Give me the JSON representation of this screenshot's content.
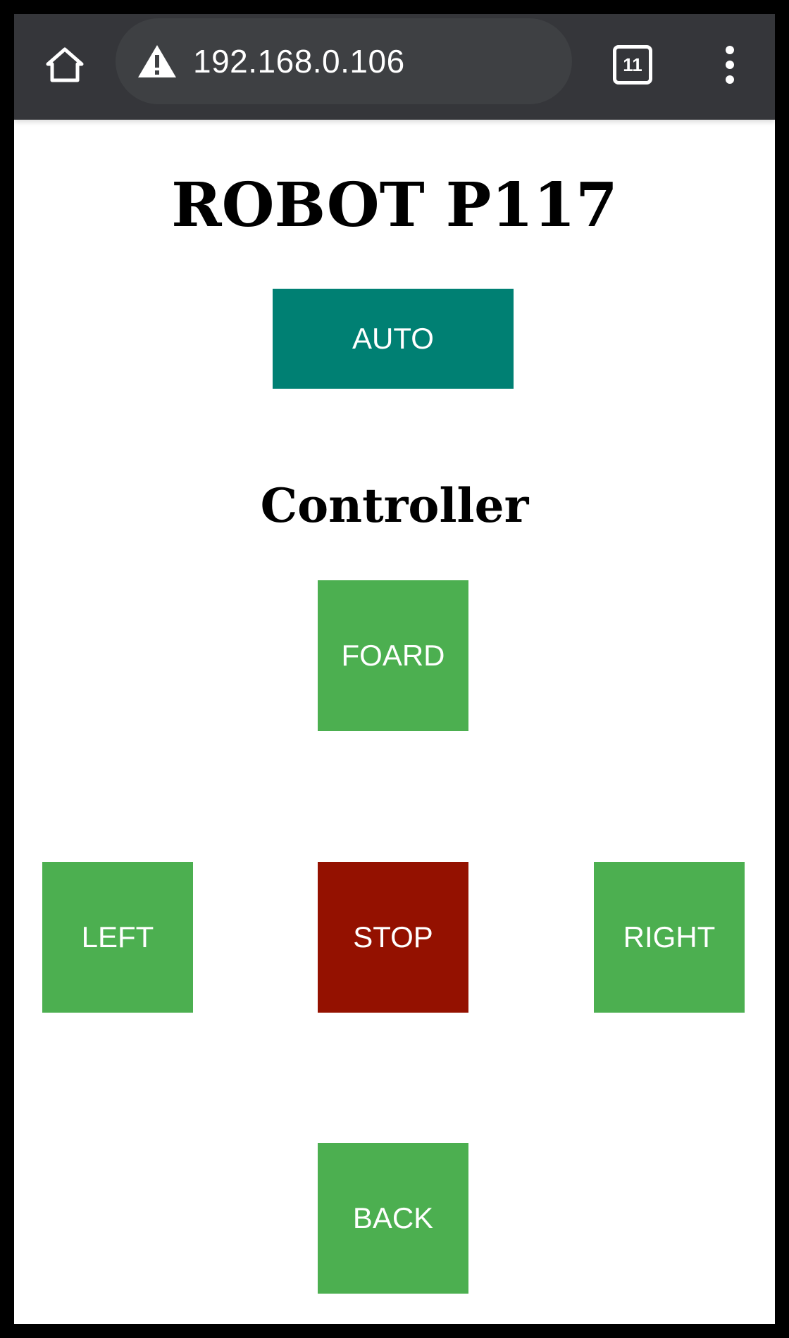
{
  "browser": {
    "url": "192.168.0.106",
    "tab_count": "11",
    "icons": {
      "home": "home-icon",
      "warning": "warning-icon",
      "tabs": "tab-switcher-icon",
      "menu": "more-vert-icon"
    },
    "toolbar_color": "#35363a"
  },
  "page": {
    "title": "ROBOT P117",
    "auto_button": "AUTO",
    "controller_heading": "Controller",
    "controls": {
      "forward": "FOARD",
      "left": "LEFT",
      "stop": "STOP",
      "right": "RIGHT",
      "back": "BACK"
    },
    "colors": {
      "auto": "#008073",
      "direction": "#4caf50",
      "stop": "#941100"
    }
  }
}
